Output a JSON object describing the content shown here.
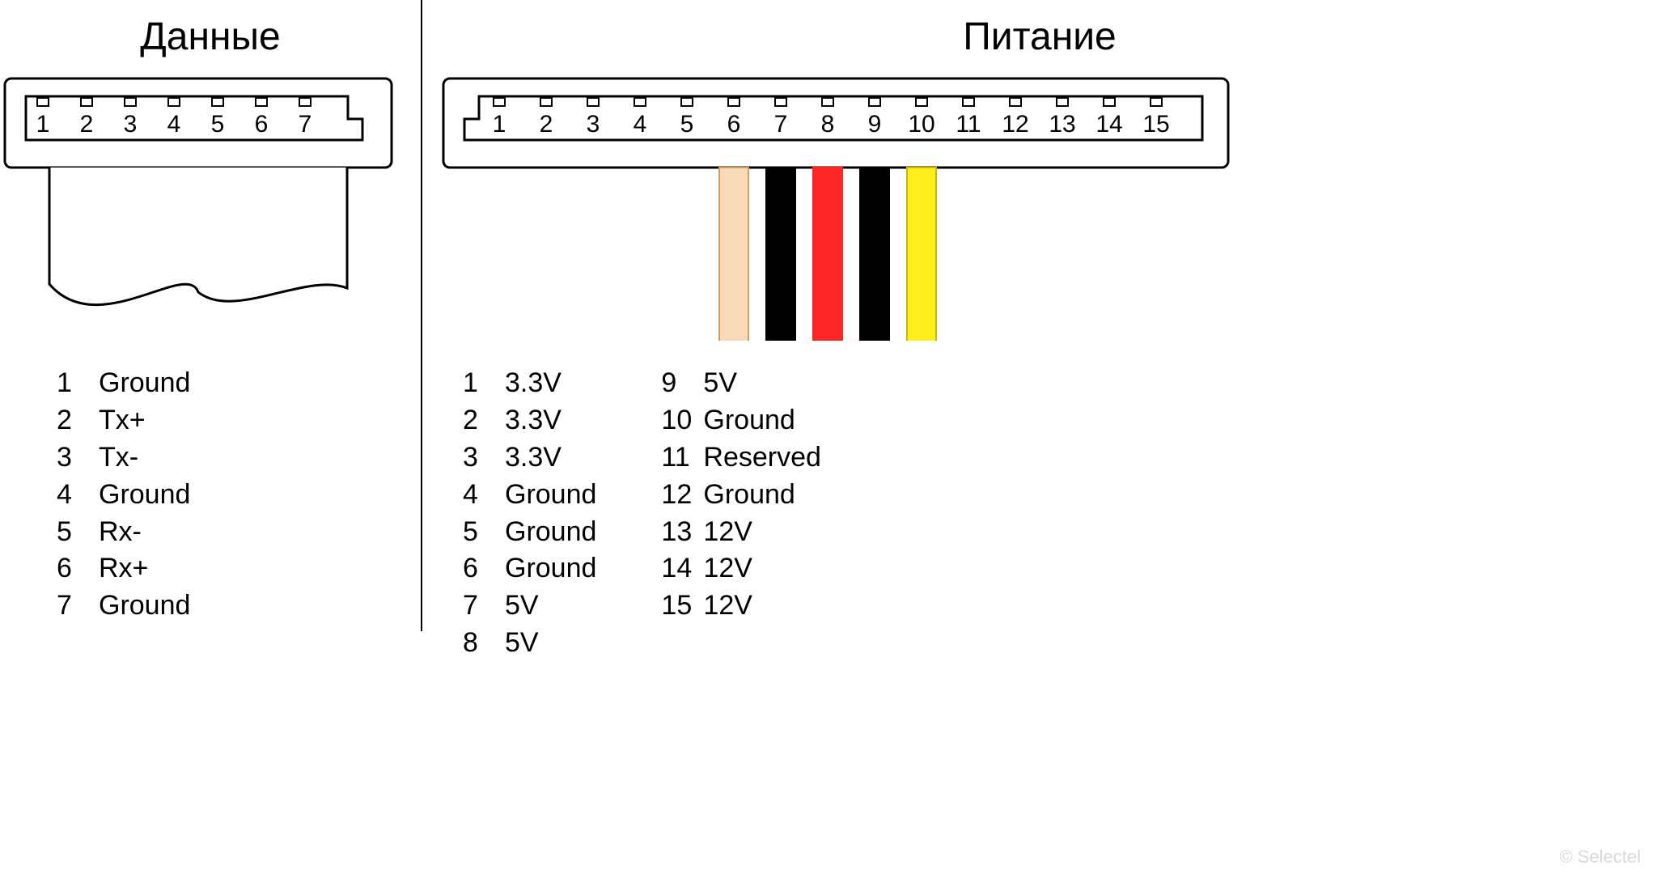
{
  "watermark": "© Selectel",
  "stroke_color": "#000000",
  "stroke_width": 3,
  "background": "#ffffff",
  "font_family": "Arial",
  "title_fontsize": 48,
  "legend_fontsize": 34,
  "pin_number_fontsize": 30,
  "data": {
    "title": "Данные",
    "pin_count": 7,
    "pins": [
      {
        "n": "1",
        "label": "Ground"
      },
      {
        "n": "2",
        "label": "Tx+"
      },
      {
        "n": "3",
        "label": "Tx-"
      },
      {
        "n": "4",
        "label": "Ground"
      },
      {
        "n": "5",
        "label": "Rx-"
      },
      {
        "n": "6",
        "label": "Rx+"
      },
      {
        "n": "7",
        "label": "Ground"
      }
    ],
    "cable": {
      "type": "flat-ribbon",
      "fill": "#ffffff",
      "stroke": "#000000"
    }
  },
  "power": {
    "title": "Питание",
    "pin_count": 15,
    "pins_col1": [
      {
        "n": "1",
        "label": "3.3V"
      },
      {
        "n": "2",
        "label": "3.3V"
      },
      {
        "n": "3",
        "label": "3.3V"
      },
      {
        "n": "4",
        "label": "Ground"
      },
      {
        "n": "5",
        "label": "Ground"
      },
      {
        "n": "6",
        "label": "Ground"
      },
      {
        "n": "7",
        "label": "5V"
      },
      {
        "n": "8",
        "label": "5V"
      }
    ],
    "pins_col2": [
      {
        "n": "9",
        "label": "5V"
      },
      {
        "n": "10",
        "label": "Ground"
      },
      {
        "n": "11",
        "label": "Reserved"
      },
      {
        "n": "12",
        "label": "Ground"
      },
      {
        "n": "13",
        "label": "12V"
      },
      {
        "n": "14",
        "label": "12V"
      },
      {
        "n": "15",
        "label": "12V"
      }
    ],
    "wires": [
      {
        "pin": 6,
        "fill": "#f9d9b8",
        "stroke": "#c9a060"
      },
      {
        "pin": 7,
        "fill": "#000000",
        "stroke": "#000000"
      },
      {
        "pin": 8,
        "fill": "#ff2626",
        "stroke": "#ff2626"
      },
      {
        "pin": 9,
        "fill": "#000000",
        "stroke": "#000000"
      },
      {
        "pin": 10,
        "fill": "#ffef1c",
        "stroke": "#c9b800"
      }
    ],
    "wire_width": 36,
    "wire_height": 220
  }
}
